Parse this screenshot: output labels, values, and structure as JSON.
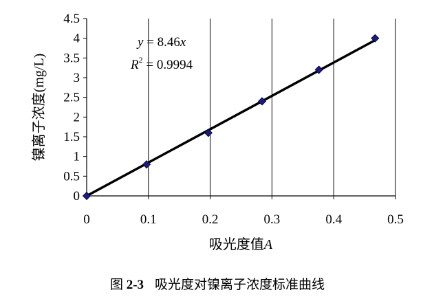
{
  "chart_data": {
    "type": "scatter",
    "xlabel_prefix": "吸光度值",
    "xlabel_var": "A",
    "ylabel": "镍离子浓度(mg/L)",
    "xlim": [
      0,
      0.5
    ],
    "ylim": [
      0,
      4.5
    ],
    "x_ticks": [
      "0",
      "0.1",
      "0.2",
      "0.3",
      "0.4",
      "0.5"
    ],
    "y_ticks": [
      "0",
      "0.5",
      "1",
      "1.5",
      "2",
      "2.5",
      "3",
      "3.5",
      "4",
      "4.5"
    ],
    "points": [
      {
        "x": 0,
        "y": 0
      },
      {
        "x": 0.097,
        "y": 0.8
      },
      {
        "x": 0.197,
        "y": 1.6
      },
      {
        "x": 0.284,
        "y": 2.4
      },
      {
        "x": 0.376,
        "y": 3.2
      },
      {
        "x": 0.467,
        "y": 4.0
      }
    ],
    "trendline": {
      "slope": 8.46,
      "equation_lhs": "y",
      "equation_op": " = 8.46",
      "equation_var": "x",
      "r2_base": "R",
      "r2_exp": "2",
      "r2_value": " = 0.9994"
    },
    "grid": false,
    "legend": "none",
    "colors": {
      "marker": "#1a1a80",
      "line": "#000000"
    }
  },
  "caption": {
    "figure_label": "图 ",
    "figure_number": "2-3",
    "text": "吸光度对镍离子浓度标准曲线"
  }
}
